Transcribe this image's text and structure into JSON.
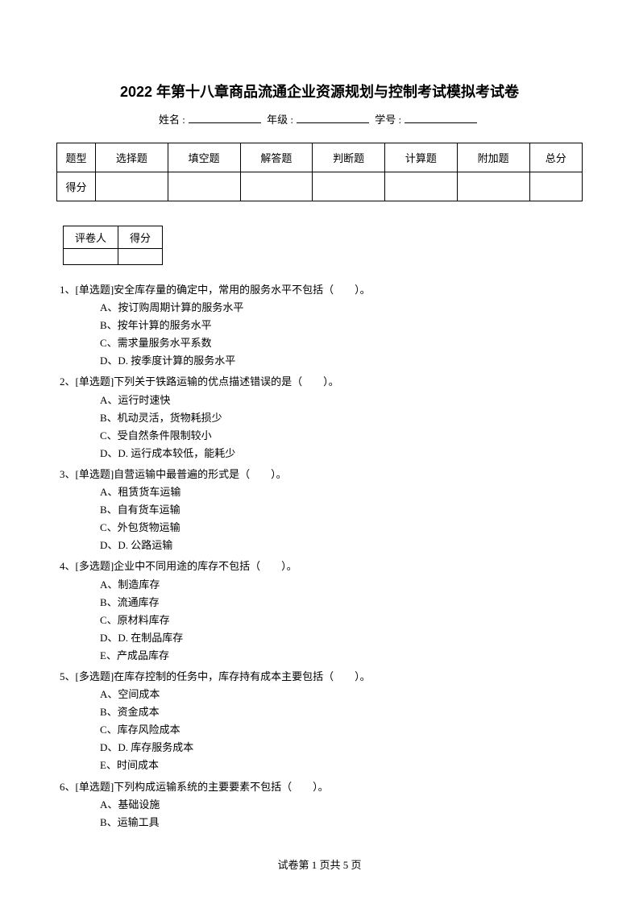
{
  "title": "2022 年第十八章商品流通企业资源规划与控制考试模拟考试卷",
  "info": {
    "name_label": "姓名 :",
    "grade_label": "年级 :",
    "id_label": "学号 :"
  },
  "score_table": {
    "headers": [
      "题型",
      "选择题",
      "填空题",
      "解答题",
      "判断题",
      "计算题",
      "附加题",
      "总分"
    ],
    "row_label": "得分"
  },
  "grader_table": {
    "col1": "评卷人",
    "col2": "得分"
  },
  "questions": [
    {
      "num": "1、",
      "type": "[单选题]",
      "stem": "安全库存量的确定中，常用的服务水平不包括（　　）。",
      "options": [
        "A、按订购周期计算的服务水平",
        "B、按年计算的服务水平",
        "C、需求量服务水平系数",
        "D、D. 按季度计算的服务水平"
      ]
    },
    {
      "num": "2、",
      "type": "[单选题]",
      "stem": "下列关于铁路运输的优点描述错误的是（　　）。",
      "options": [
        "A、运行时速快",
        "B、机动灵活，货物耗损少",
        "C、受自然条件限制较小",
        "D、D. 运行成本较低，能耗少"
      ]
    },
    {
      "num": "3、",
      "type": "[单选题]",
      "stem": "自营运输中最普遍的形式是（　　）。",
      "options": [
        "A、租赁货车运输",
        "B、自有货车运输",
        "C、外包货物运输",
        "D、D. 公路运输"
      ]
    },
    {
      "num": "4、",
      "type": "[多选题]",
      "stem": "企业中不同用途的库存不包括（　　）。",
      "options": [
        "A、制造库存",
        "B、流通库存",
        "C、原材料库存",
        "D、D. 在制品库存",
        "E、产成品库存"
      ]
    },
    {
      "num": "5、",
      "type": "[多选题]",
      "stem": "在库存控制的任务中，库存持有成本主要包括（　　）。",
      "options": [
        "A、空间成本",
        "B、资金成本",
        "C、库存风险成本",
        "D、D. 库存服务成本",
        "E、时间成本"
      ]
    },
    {
      "num": "6、",
      "type": "[单选题]",
      "stem": "下列构成运输系统的主要要素不包括（　　）。",
      "options": [
        "A、基础设施",
        "B、运输工具"
      ]
    }
  ],
  "footer": "试卷第 1 页共 5 页"
}
